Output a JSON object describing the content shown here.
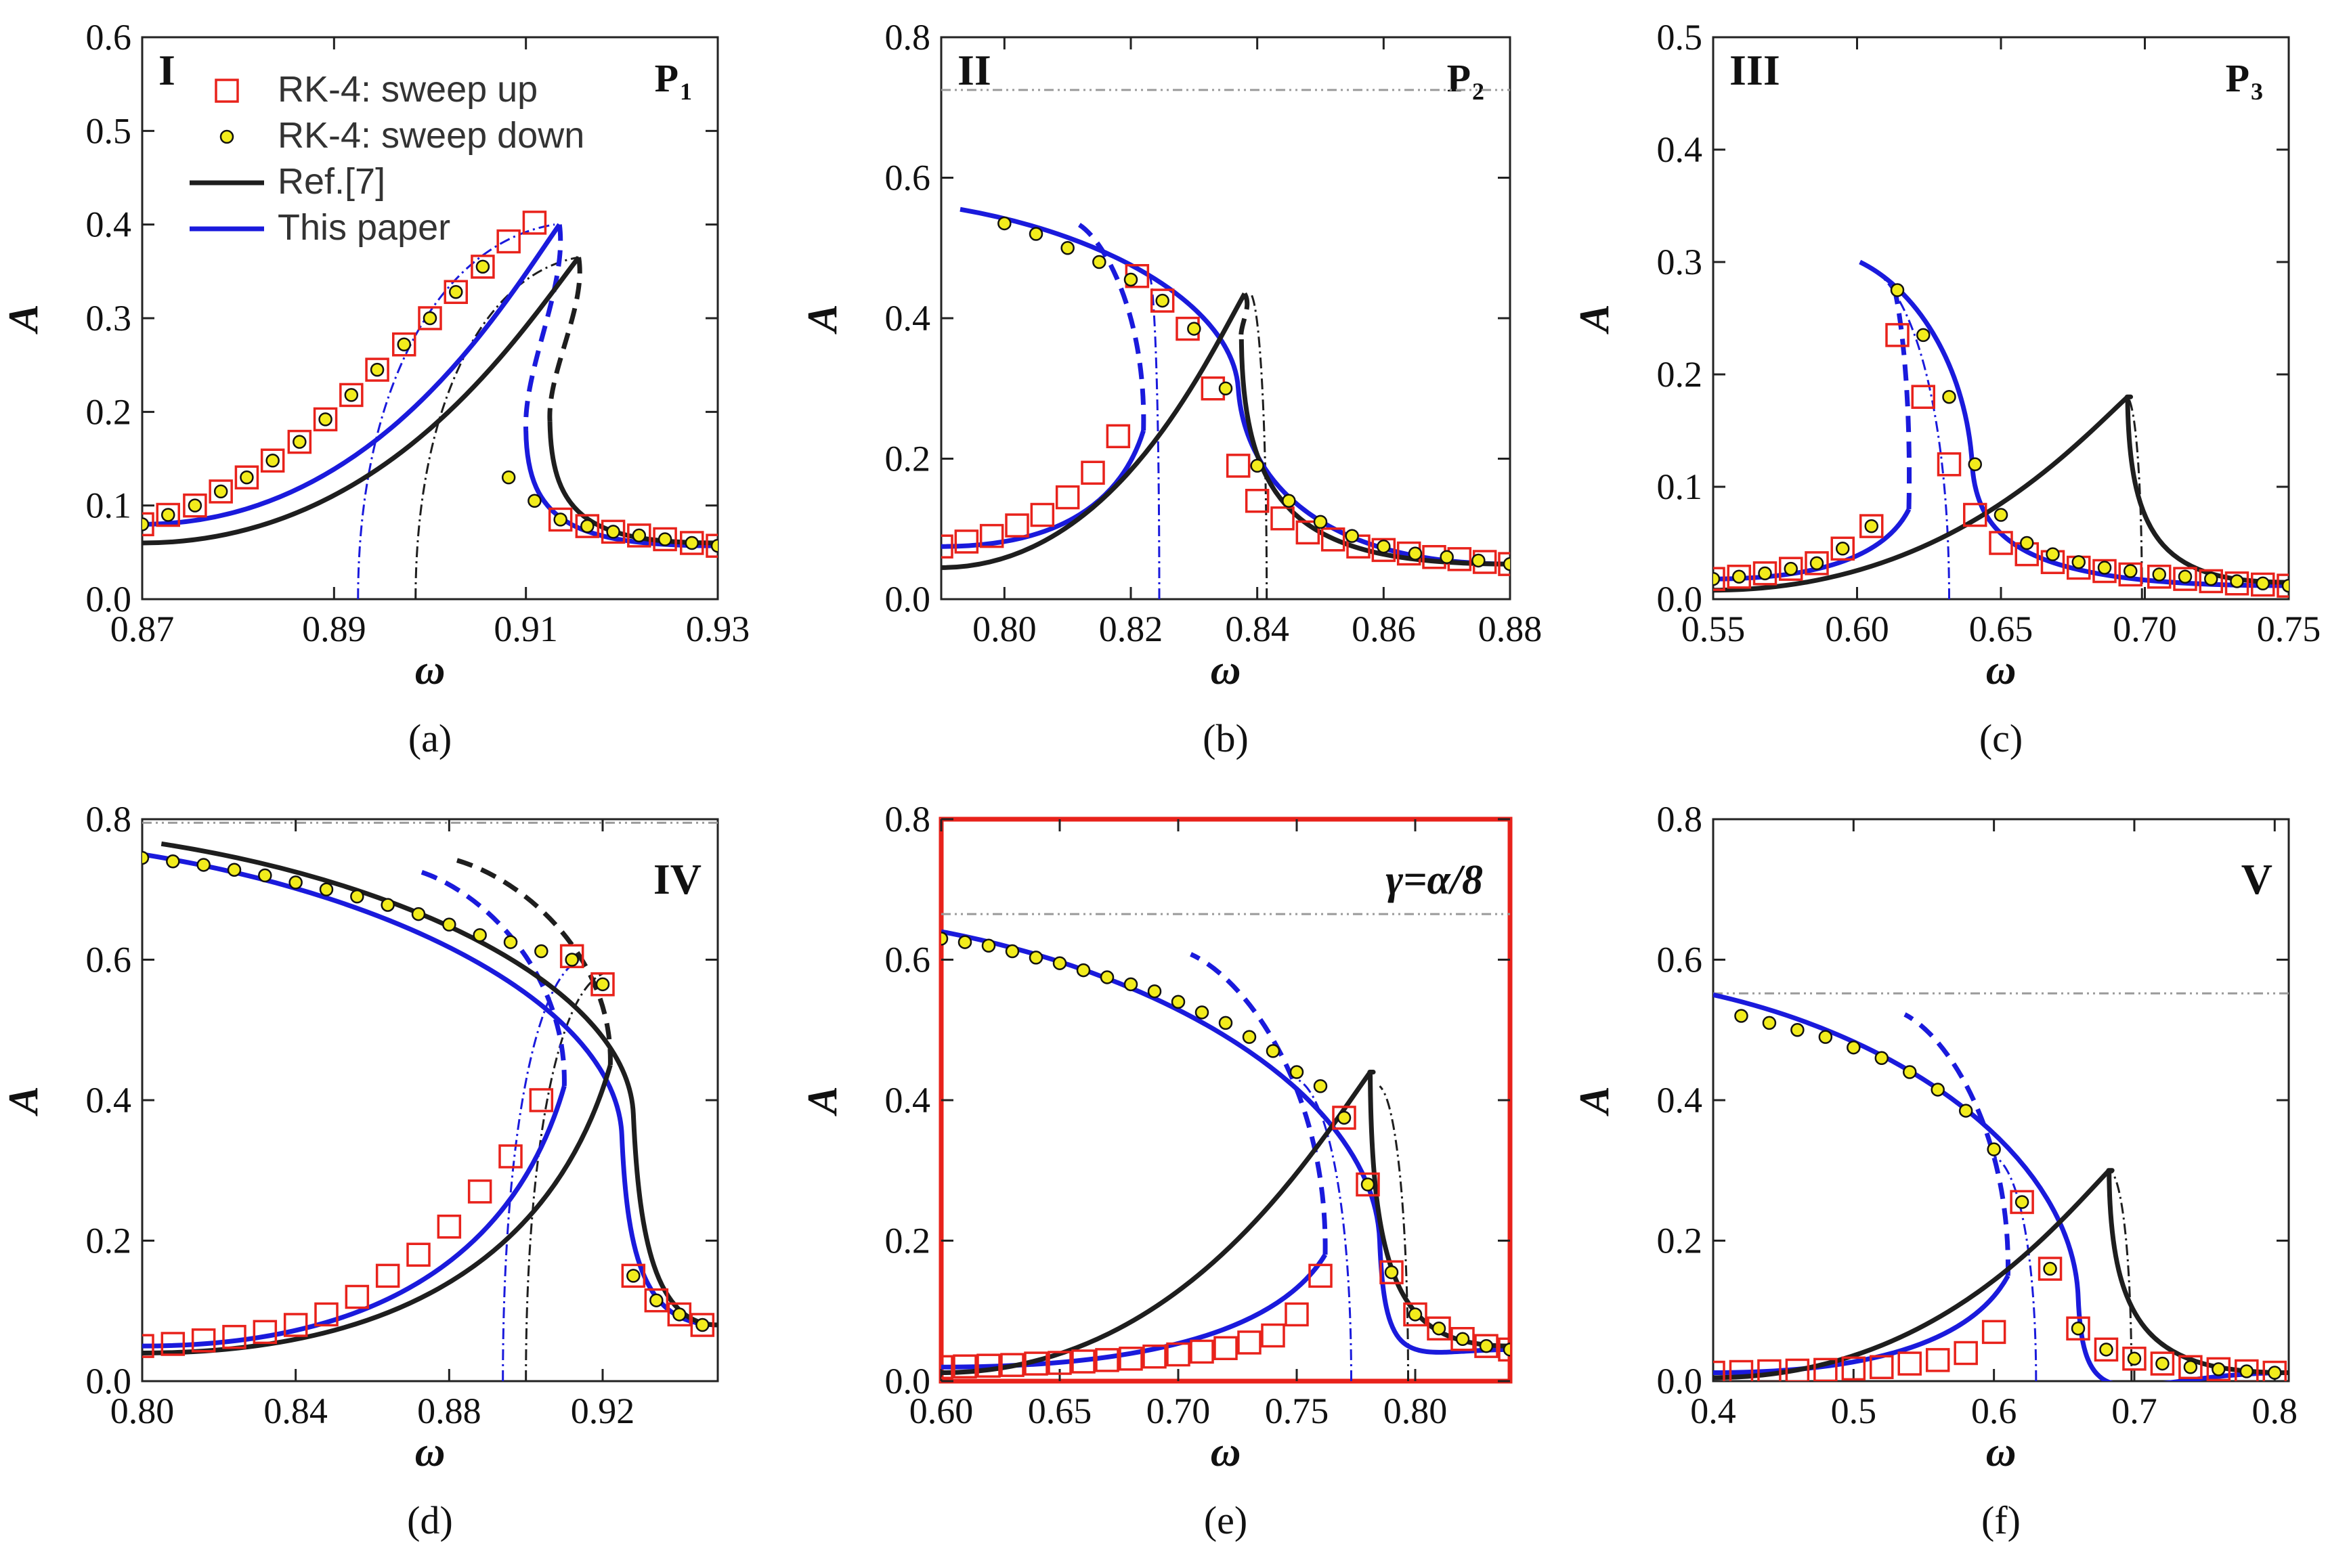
{
  "figure": {
    "colors": {
      "blue": "#1a1adc",
      "black": "#1e1e1e",
      "red": "#e8221b",
      "yellow": "#f2ec1c",
      "gray": "#9a9a9a"
    },
    "legend": [
      {
        "key": "sweep_up",
        "label": "RK-4: sweep up"
      },
      {
        "key": "sweep_down",
        "label": "RK-4: sweep down"
      },
      {
        "key": "ref",
        "label": "Ref.[7]"
      },
      {
        "key": "paper",
        "label": "This paper"
      }
    ]
  },
  "chart_data": [
    {
      "id": "a",
      "type": "line",
      "caption": "(a)",
      "roman": "I",
      "panel_label": "P",
      "panel_sub": "1",
      "xlabel": "ω",
      "ylabel": "A",
      "xlim": [
        0.87,
        0.93
      ],
      "ylim": [
        0,
        0.6
      ],
      "xticks": [
        "0.87",
        "0.89",
        "0.91",
        "0.93"
      ],
      "yticks": [
        "0.0",
        "0.1",
        "0.2",
        "0.3",
        "0.4",
        "0.5",
        "0.6"
      ],
      "series": [
        {
          "name": "This paper",
          "peak_x": 0.9135,
          "peak_y": 0.4,
          "low_x": 0.91,
          "low_y": 0.18,
          "left_x": 0.87,
          "left_y": 0.08,
          "right_x": 0.93,
          "right_y": 0.057
        },
        {
          "name": "Ref.[7]",
          "peak_x": 0.9155,
          "peak_y": 0.365,
          "low_x": 0.9125,
          "low_y": 0.19,
          "left_x": 0.87,
          "left_y": 0.06,
          "right_x": 0.93,
          "right_y": 0.06
        }
      ],
      "backbone": [
        {
          "name": "This paper",
          "peak_x": 0.913,
          "peak_y": 0.4,
          "base_x": 0.8925
        },
        {
          "name": "Ref.[7]",
          "peak_x": 0.9155,
          "peak_y": 0.365,
          "base_x": 0.8985
        }
      ],
      "sweep_up_x": [
        0.87,
        0.8727,
        0.8755,
        0.8782,
        0.8809,
        0.8836,
        0.8864,
        0.8891,
        0.8918,
        0.8945,
        0.8973,
        0.9,
        0.9027,
        0.9055,
        0.9082,
        0.9109,
        0.9136,
        0.9164,
        0.9191,
        0.9218,
        0.9245,
        0.9273,
        0.93
      ],
      "sweep_up_y": [
        0.08,
        0.09,
        0.1,
        0.115,
        0.13,
        0.148,
        0.168,
        0.192,
        0.218,
        0.245,
        0.272,
        0.3,
        0.328,
        0.355,
        0.382,
        0.402,
        0.085,
        0.078,
        0.072,
        0.068,
        0.064,
        0.06,
        0.057
      ],
      "sweep_down_x": [
        0.87,
        0.8727,
        0.8755,
        0.8782,
        0.8809,
        0.8836,
        0.8864,
        0.8891,
        0.8918,
        0.8945,
        0.8973,
        0.9,
        0.9027,
        0.9055,
        0.9082,
        0.9109,
        0.9136,
        0.9164,
        0.9191,
        0.9218,
        0.9245,
        0.9273,
        0.93
      ],
      "sweep_down_y": [
        0.08,
        0.09,
        0.1,
        0.115,
        0.13,
        0.148,
        0.168,
        0.192,
        0.218,
        0.245,
        0.272,
        0.3,
        0.328,
        0.355,
        0.13,
        0.105,
        0.085,
        0.078,
        0.072,
        0.068,
        0.064,
        0.06,
        0.057
      ]
    },
    {
      "id": "b",
      "type": "line",
      "caption": "(b)",
      "roman": "II",
      "panel_label": "P",
      "panel_sub": "2",
      "xlabel": "ω",
      "ylabel": "A",
      "xlim": [
        0.79,
        0.88
      ],
      "ylim": [
        0,
        0.8
      ],
      "hline": 0.725,
      "xticks": [
        "0.80",
        "0.82",
        "0.84",
        "0.86",
        "0.88"
      ],
      "yticks": [
        "0.0",
        "0.2",
        "0.4",
        "0.6",
        "0.8"
      ],
      "series": [
        {
          "name": "This paper",
          "peak_x": 0.793,
          "peak_y": 0.555,
          "low_x": 0.822,
          "low_y": 0.24,
          "left_x": 0.79,
          "left_y": 0.075,
          "right_x": 0.88,
          "right_y": 0.05,
          "softening": true,
          "knee_x": 0.837,
          "knee_y": 0.3
        },
        {
          "name": "Ref.[7]",
          "peak_x": 0.838,
          "peak_y": 0.435,
          "low_x": 0.8375,
          "low_y": 0.37,
          "left_x": 0.79,
          "left_y": 0.045,
          "right_x": 0.88,
          "right_y": 0.05
        }
      ],
      "backbone": [
        {
          "name": "This paper",
          "peak_x": 0.823,
          "peak_y": 0.46,
          "base_x": 0.8245
        },
        {
          "name": "Ref.[7]",
          "peak_x": 0.839,
          "peak_y": 0.435,
          "base_x": 0.8415
        }
      ],
      "sweep_up_x": [
        0.79,
        0.794,
        0.798,
        0.802,
        0.806,
        0.81,
        0.814,
        0.818,
        0.821,
        0.825,
        0.829,
        0.833,
        0.837,
        0.84,
        0.844,
        0.848,
        0.852,
        0.856,
        0.86,
        0.864,
        0.868,
        0.872,
        0.876,
        0.88
      ],
      "sweep_up_y": [
        0.075,
        0.082,
        0.09,
        0.105,
        0.12,
        0.145,
        0.18,
        0.232,
        0.46,
        0.425,
        0.385,
        0.3,
        0.19,
        0.14,
        0.115,
        0.095,
        0.085,
        0.075,
        0.07,
        0.065,
        0.06,
        0.057,
        0.053,
        0.05
      ],
      "sweep_down_x": [
        0.8,
        0.805,
        0.81,
        0.815,
        0.82,
        0.825,
        0.83,
        0.835,
        0.84,
        0.845,
        0.85,
        0.855,
        0.86,
        0.865,
        0.87,
        0.875,
        0.88
      ],
      "sweep_down_y": [
        0.535,
        0.52,
        0.5,
        0.48,
        0.455,
        0.425,
        0.385,
        0.3,
        0.19,
        0.14,
        0.11,
        0.09,
        0.075,
        0.065,
        0.06,
        0.055,
        0.05
      ]
    },
    {
      "id": "c",
      "type": "line",
      "caption": "(c)",
      "roman": "III",
      "panel_label": "P",
      "panel_sub": "3",
      "xlabel": "ω",
      "ylabel": "A",
      "xlim": [
        0.55,
        0.75
      ],
      "ylim": [
        0,
        0.5
      ],
      "xticks": [
        "0.55",
        "0.60",
        "0.65",
        "0.70",
        "0.75"
      ],
      "yticks": [
        "0.0",
        "0.1",
        "0.2",
        "0.3",
        "0.4",
        "0.5"
      ],
      "series": [
        {
          "name": "This paper",
          "peak_x": 0.601,
          "peak_y": 0.3,
          "low_x": 0.618,
          "low_y": 0.08,
          "left_x": 0.55,
          "left_y": 0.018,
          "right_x": 0.75,
          "right_y": 0.012,
          "softening": true,
          "knee_x": 0.64,
          "knee_y": 0.12
        },
        {
          "name": "Ref.[7]",
          "peak_x": 0.694,
          "peak_y": 0.18,
          "low_x": 0.694,
          "low_y": 0.18,
          "left_x": 0.55,
          "left_y": 0.008,
          "right_x": 0.75,
          "right_y": 0.015
        }
      ],
      "backbone": [
        {
          "name": "This paper",
          "peak_x": 0.601,
          "peak_y": 0.3,
          "base_x": 0.632
        },
        {
          "name": "Ref.[7]",
          "peak_x": 0.694,
          "peak_y": 0.18,
          "base_x": 0.699
        }
      ],
      "sweep_up_x": [
        0.55,
        0.559,
        0.568,
        0.577,
        0.586,
        0.595,
        0.605,
        0.614,
        0.623,
        0.632,
        0.641,
        0.65,
        0.659,
        0.668,
        0.677,
        0.686,
        0.695,
        0.705,
        0.714,
        0.723,
        0.732,
        0.741,
        0.75
      ],
      "sweep_up_y": [
        0.018,
        0.02,
        0.023,
        0.027,
        0.032,
        0.045,
        0.065,
        0.235,
        0.18,
        0.12,
        0.075,
        0.05,
        0.04,
        0.033,
        0.028,
        0.025,
        0.022,
        0.02,
        0.018,
        0.016,
        0.014,
        0.013,
        0.012
      ],
      "sweep_down_x": [
        0.55,
        0.559,
        0.568,
        0.577,
        0.586,
        0.595,
        0.605,
        0.614,
        0.623,
        0.632,
        0.641,
        0.65,
        0.659,
        0.668,
        0.677,
        0.686,
        0.695,
        0.705,
        0.714,
        0.723,
        0.732,
        0.741,
        0.75
      ],
      "sweep_down_y": [
        0.018,
        0.02,
        0.023,
        0.027,
        0.032,
        0.045,
        0.065,
        0.275,
        0.235,
        0.18,
        0.12,
        0.075,
        0.05,
        0.04,
        0.033,
        0.028,
        0.025,
        0.022,
        0.02,
        0.018,
        0.016,
        0.014,
        0.012
      ]
    },
    {
      "id": "d",
      "type": "line",
      "caption": "(d)",
      "roman": "IV",
      "xlabel": "ω",
      "ylabel": "A",
      "xlim": [
        0.8,
        0.95
      ],
      "ylim": [
        0,
        0.8
      ],
      "hline": 0.795,
      "xticks": [
        "0.80",
        "0.84",
        "0.88",
        "0.92"
      ],
      "yticks": [
        "0.0",
        "0.2",
        "0.4",
        "0.6",
        "0.8"
      ],
      "series": [
        {
          "name": "This paper",
          "peak_x": 0.8,
          "peak_y": 0.75,
          "low_x": 0.91,
          "low_y": 0.42,
          "left_x": 0.8,
          "left_y": 0.05,
          "right_x": 0.95,
          "right_y": 0.08,
          "softening": true,
          "knee_x": 0.925,
          "knee_y": 0.35
        },
        {
          "name": "Ref.[7]",
          "peak_x": 0.805,
          "peak_y": 0.765,
          "low_x": 0.922,
          "low_y": 0.45,
          "left_x": 0.8,
          "left_y": 0.04,
          "right_x": 0.95,
          "right_y": 0.08,
          "softening": true,
          "knee_x": 0.928,
          "knee_y": 0.38
        }
      ],
      "backbone": [
        {
          "name": "This paper",
          "peak_x": 0.914,
          "peak_y": 0.6,
          "base_x": 0.894
        },
        {
          "name": "Ref.[7]",
          "peak_x": 0.92,
          "peak_y": 0.58,
          "base_x": 0.9
        }
      ],
      "sweep_up_x": [
        0.8,
        0.808,
        0.816,
        0.824,
        0.832,
        0.84,
        0.848,
        0.856,
        0.864,
        0.872,
        0.88,
        0.888,
        0.896,
        0.904,
        0.912,
        0.92,
        0.928,
        0.934,
        0.94,
        0.946
      ],
      "sweep_up_y": [
        0.05,
        0.053,
        0.058,
        0.063,
        0.07,
        0.08,
        0.095,
        0.12,
        0.15,
        0.18,
        0.22,
        0.27,
        0.32,
        0.4,
        0.605,
        0.565,
        0.15,
        0.115,
        0.095,
        0.08
      ],
      "sweep_down_x": [
        0.8,
        0.808,
        0.816,
        0.824,
        0.832,
        0.84,
        0.848,
        0.856,
        0.864,
        0.872,
        0.88,
        0.888,
        0.896,
        0.904,
        0.912,
        0.92,
        0.928,
        0.934,
        0.94,
        0.946
      ],
      "sweep_down_y": [
        0.745,
        0.74,
        0.735,
        0.728,
        0.72,
        0.71,
        0.7,
        0.69,
        0.678,
        0.665,
        0.65,
        0.635,
        0.625,
        0.612,
        0.6,
        0.565,
        0.15,
        0.115,
        0.095,
        0.08
      ]
    },
    {
      "id": "e",
      "type": "line",
      "caption": "(e)",
      "roman": "γ=α/8",
      "highlight": true,
      "xlabel": "ω",
      "ylabel": "A",
      "xlim": [
        0.6,
        0.84
      ],
      "ylim": [
        0,
        0.8
      ],
      "hline": 0.665,
      "xticks": [
        "0.60",
        "0.65",
        "0.70",
        "0.75",
        "0.80"
      ],
      "yticks": [
        "0.0",
        "0.2",
        "0.4",
        "0.6",
        "0.8"
      ],
      "series": [
        {
          "name": "This paper",
          "peak_x": 0.6,
          "peak_y": 0.64,
          "low_x": 0.762,
          "low_y": 0.18,
          "left_x": 0.6,
          "left_y": 0.02,
          "right_x": 0.84,
          "right_y": 0.045,
          "softening": true,
          "knee_x": 0.785,
          "knee_y": 0.2
        },
        {
          "name": "Ref.[7]",
          "peak_x": 0.781,
          "peak_y": 0.44,
          "low_x": 0.781,
          "low_y": 0.44,
          "left_x": 0.6,
          "left_y": 0.012,
          "right_x": 0.84,
          "right_y": 0.05
        }
      ],
      "backbone": [
        {
          "name": "This paper",
          "peak_x": 0.75,
          "peak_y": 0.43,
          "base_x": 0.773
        },
        {
          "name": "Ref.[7]",
          "peak_x": 0.785,
          "peak_y": 0.42,
          "base_x": 0.797
        }
      ],
      "sweep_up_x": [
        0.6,
        0.61,
        0.62,
        0.63,
        0.64,
        0.65,
        0.66,
        0.67,
        0.68,
        0.69,
        0.7,
        0.71,
        0.72,
        0.73,
        0.74,
        0.75,
        0.76,
        0.77,
        0.78,
        0.79,
        0.8,
        0.81,
        0.82,
        0.83,
        0.84
      ],
      "sweep_up_y": [
        0.02,
        0.021,
        0.022,
        0.023,
        0.025,
        0.026,
        0.028,
        0.03,
        0.032,
        0.035,
        0.038,
        0.042,
        0.047,
        0.055,
        0.065,
        0.095,
        0.15,
        0.375,
        0.28,
        0.155,
        0.095,
        0.075,
        0.06,
        0.05,
        0.045
      ],
      "sweep_down_x": [
        0.6,
        0.61,
        0.62,
        0.63,
        0.64,
        0.65,
        0.66,
        0.67,
        0.68,
        0.69,
        0.7,
        0.71,
        0.72,
        0.73,
        0.74,
        0.75,
        0.76,
        0.77,
        0.78,
        0.79,
        0.8,
        0.81,
        0.82,
        0.83,
        0.84
      ],
      "sweep_down_y": [
        0.63,
        0.625,
        0.62,
        0.612,
        0.603,
        0.595,
        0.585,
        0.575,
        0.565,
        0.555,
        0.54,
        0.525,
        0.51,
        0.49,
        0.47,
        0.44,
        0.42,
        0.375,
        0.28,
        0.155,
        0.095,
        0.075,
        0.06,
        0.05,
        0.045
      ]
    },
    {
      "id": "f",
      "type": "line",
      "caption": "(f)",
      "roman": "V",
      "xlabel": "ω",
      "ylabel": "A",
      "xlim": [
        0.4,
        0.81
      ],
      "ylim": [
        0,
        0.8
      ],
      "hline": 0.552,
      "xticks": [
        "0.4",
        "0.5",
        "0.6",
        "0.7",
        "0.8"
      ],
      "yticks": [
        "0.0",
        "0.2",
        "0.4",
        "0.6",
        "0.8"
      ],
      "series": [
        {
          "name": "This paper",
          "peak_x": 0.4,
          "peak_y": 0.55,
          "low_x": 0.61,
          "low_y": 0.15,
          "left_x": 0.4,
          "left_y": 0.012,
          "right_x": 0.81,
          "right_y": 0.012,
          "softening": true,
          "knee_x": 0.66,
          "knee_y": 0.12
        },
        {
          "name": "Ref.[7]",
          "peak_x": 0.682,
          "peak_y": 0.3,
          "low_x": 0.682,
          "low_y": 0.3,
          "left_x": 0.4,
          "left_y": 0.005,
          "right_x": 0.81,
          "right_y": 0.012
        }
      ],
      "backbone": [
        {
          "name": "This paper",
          "peak_x": 0.6,
          "peak_y": 0.32,
          "base_x": 0.63
        },
        {
          "name": "Ref.[7]",
          "peak_x": 0.683,
          "peak_y": 0.3,
          "base_x": 0.698
        }
      ],
      "sweep_up_x": [
        0.4,
        0.42,
        0.44,
        0.46,
        0.48,
        0.5,
        0.52,
        0.54,
        0.56,
        0.58,
        0.6,
        0.62,
        0.64,
        0.66,
        0.68,
        0.7,
        0.72,
        0.74,
        0.76,
        0.78,
        0.8
      ],
      "sweep_up_y": [
        0.012,
        0.013,
        0.014,
        0.015,
        0.016,
        0.018,
        0.02,
        0.025,
        0.03,
        0.04,
        0.07,
        0.255,
        0.16,
        0.075,
        0.045,
        0.032,
        0.025,
        0.02,
        0.017,
        0.014,
        0.012
      ],
      "sweep_down_x": [
        0.42,
        0.44,
        0.46,
        0.48,
        0.5,
        0.52,
        0.54,
        0.56,
        0.58,
        0.6,
        0.62,
        0.64,
        0.66,
        0.68,
        0.7,
        0.72,
        0.74,
        0.76,
        0.78,
        0.8
      ],
      "sweep_down_y": [
        0.52,
        0.51,
        0.5,
        0.49,
        0.475,
        0.46,
        0.44,
        0.415,
        0.385,
        0.33,
        0.255,
        0.16,
        0.075,
        0.045,
        0.032,
        0.025,
        0.02,
        0.017,
        0.014,
        0.012
      ]
    }
  ]
}
